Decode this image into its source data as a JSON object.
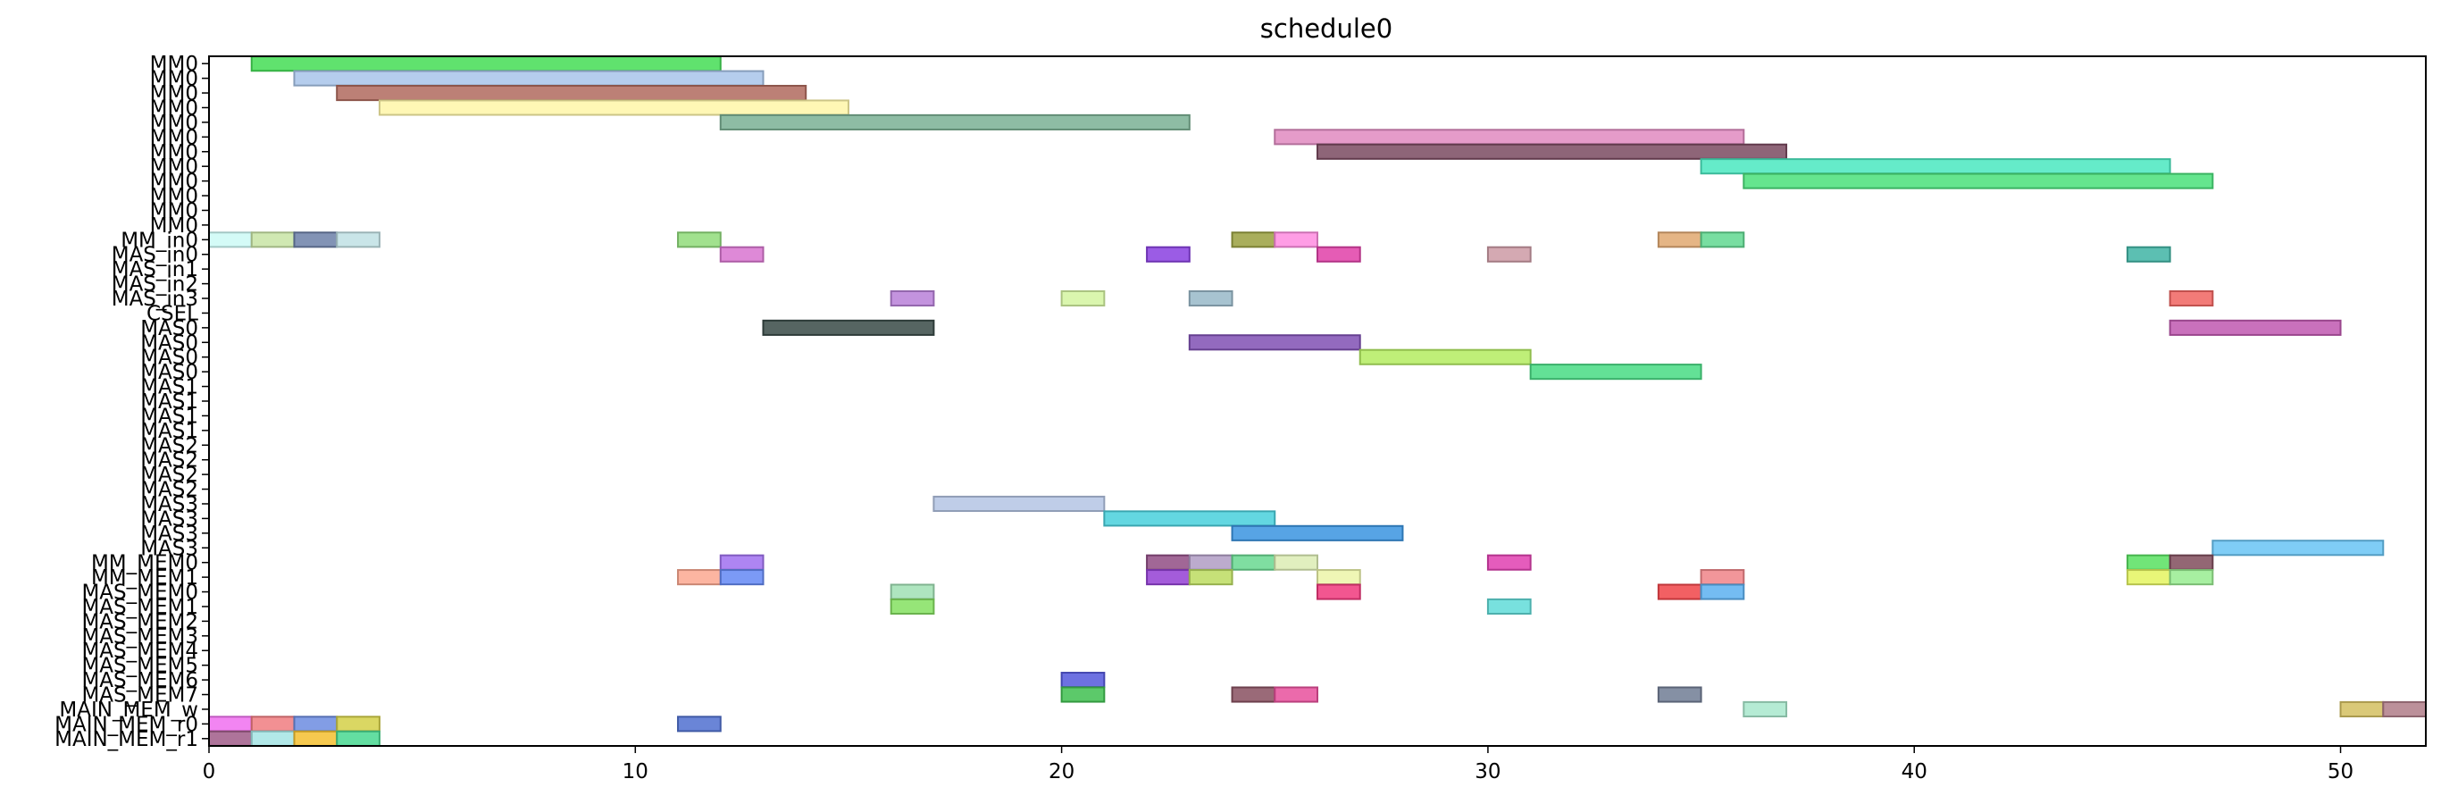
{
  "chart_data": {
    "type": "gantt",
    "title": "schedule0",
    "xlim": [
      0,
      52
    ],
    "xticks": [
      0,
      10,
      20,
      30,
      40,
      50
    ],
    "grid": false,
    "rows": [
      "MM0",
      "MM0",
      "MM0",
      "MM0",
      "MM0",
      "MM0",
      "MM0",
      "MM0",
      "MM0",
      "MM0",
      "MM0",
      "MM0",
      "MM_in0",
      "MAS_in0",
      "MAS_in1",
      "MAS_in2",
      "MAS_in3",
      "CSEL",
      "MAS0",
      "MAS0",
      "MAS0",
      "MAS0",
      "MAS1",
      "MAS1",
      "MAS1",
      "MAS1",
      "MAS2",
      "MAS2",
      "MAS2",
      "MAS2",
      "MAS3",
      "MAS3",
      "MAS3",
      "MAS3",
      "MM_MEM0",
      "MM_MEM1",
      "MAS_MEM0",
      "MAS_MEM1",
      "MAS_MEM2",
      "MAS_MEM3",
      "MAS_MEM4",
      "MAS_MEM5",
      "MAS_MEM6",
      "MAS_MEM7",
      "MAIN_MEM_w",
      "MAIN_MEM_r0",
      "MAIN_MEM_r1"
    ],
    "tasks": [
      {
        "row": 0,
        "start": 1,
        "end": 12,
        "color": "#44dd55"
      },
      {
        "row": 1,
        "start": 2,
        "end": 13,
        "color": "#a8c4ea"
      },
      {
        "row": 2,
        "start": 3,
        "end": 14,
        "color": "#b06a5e"
      },
      {
        "row": 3,
        "start": 4,
        "end": 15,
        "color": "#fff6a8"
      },
      {
        "row": 4,
        "start": 12,
        "end": 23,
        "color": "#7ab094"
      },
      {
        "row": 5,
        "start": 25,
        "end": 36,
        "color": "#e08ac0"
      },
      {
        "row": 6,
        "start": 26,
        "end": 37,
        "color": "#7a4a60"
      },
      {
        "row": 7,
        "start": 35,
        "end": 46,
        "color": "#4ae8c0"
      },
      {
        "row": 8,
        "start": 36,
        "end": 47,
        "color": "#4ae07a"
      },
      {
        "row": 12,
        "start": 0,
        "end": 1,
        "color": "#ccfaf6"
      },
      {
        "row": 12,
        "start": 1,
        "end": 2,
        "color": "#c8e4a4"
      },
      {
        "row": 12,
        "start": 2,
        "end": 3,
        "color": "#6c80a8"
      },
      {
        "row": 12,
        "start": 3,
        "end": 4,
        "color": "#c0e0e4"
      },
      {
        "row": 12,
        "start": 11,
        "end": 12,
        "color": "#90dc7a"
      },
      {
        "row": 12,
        "start": 24,
        "end": 25,
        "color": "#9aa040"
      },
      {
        "row": 12,
        "start": 25,
        "end": 26,
        "color": "#ff8ce0"
      },
      {
        "row": 12,
        "start": 34,
        "end": 35,
        "color": "#e0a870"
      },
      {
        "row": 12,
        "start": 35,
        "end": 36,
        "color": "#60d890"
      },
      {
        "row": 13,
        "start": 12,
        "end": 13,
        "color": "#d874d0"
      },
      {
        "row": 13,
        "start": 22,
        "end": 23,
        "color": "#8a40e0"
      },
      {
        "row": 13,
        "start": 26,
        "end": 27,
        "color": "#e040a8"
      },
      {
        "row": 13,
        "start": 30,
        "end": 31,
        "color": "#cc9aa4"
      },
      {
        "row": 13,
        "start": 45,
        "end": 46,
        "color": "#40b4a4"
      },
      {
        "row": 16,
        "start": 16,
        "end": 17,
        "color": "#b880d8"
      },
      {
        "row": 16,
        "start": 20,
        "end": 21,
        "color": "#d4f4a0"
      },
      {
        "row": 16,
        "start": 23,
        "end": 24,
        "color": "#98b8c8"
      },
      {
        "row": 16,
        "start": 46,
        "end": 47,
        "color": "#f06460"
      },
      {
        "row": 18,
        "start": 13,
        "end": 17,
        "color": "#384a46"
      },
      {
        "row": 18,
        "start": 46,
        "end": 50,
        "color": "#c058b0"
      },
      {
        "row": 19,
        "start": 23,
        "end": 27,
        "color": "#8050b4"
      },
      {
        "row": 20,
        "start": 27,
        "end": 31,
        "color": "#b4ec60"
      },
      {
        "row": 21,
        "start": 31,
        "end": 35,
        "color": "#48dc84"
      },
      {
        "row": 30,
        "start": 17,
        "end": 21,
        "color": "#b4c4e4"
      },
      {
        "row": 31,
        "start": 21,
        "end": 25,
        "color": "#48d0dc"
      },
      {
        "row": 32,
        "start": 24,
        "end": 28,
        "color": "#3a94e0"
      },
      {
        "row": 33,
        "start": 47,
        "end": 51,
        "color": "#68c4f4"
      },
      {
        "row": 34,
        "start": 12,
        "end": 13,
        "color": "#a070f0"
      },
      {
        "row": 34,
        "start": 22,
        "end": 23,
        "color": "#904c84"
      },
      {
        "row": 34,
        "start": 23,
        "end": 24,
        "color": "#b09cc4"
      },
      {
        "row": 34,
        "start": 24,
        "end": 25,
        "color": "#68d890"
      },
      {
        "row": 34,
        "start": 25,
        "end": 26,
        "color": "#dcecb4"
      },
      {
        "row": 34,
        "start": 30,
        "end": 31,
        "color": "#e040b0"
      },
      {
        "row": 34,
        "start": 45,
        "end": 46,
        "color": "#58e060"
      },
      {
        "row": 34,
        "start": 46,
        "end": 47,
        "color": "#804c5c"
      },
      {
        "row": 35,
        "start": 11,
        "end": 12,
        "color": "#fca890"
      },
      {
        "row": 35,
        "start": 12,
        "end": 13,
        "color": "#6488f4"
      },
      {
        "row": 35,
        "start": 22,
        "end": 23,
        "color": "#9440d4"
      },
      {
        "row": 35,
        "start": 23,
        "end": 24,
        "color": "#bcdc60"
      },
      {
        "row": 35,
        "start": 26,
        "end": 27,
        "color": "#ecf4a8"
      },
      {
        "row": 35,
        "start": 35,
        "end": 36,
        "color": "#f08488"
      },
      {
        "row": 35,
        "start": 45,
        "end": 46,
        "color": "#e4f460"
      },
      {
        "row": 35,
        "start": 46,
        "end": 47,
        "color": "#98ec90"
      },
      {
        "row": 36,
        "start": 16,
        "end": 17,
        "color": "#a0e0b4"
      },
      {
        "row": 36,
        "start": 26,
        "end": 27,
        "color": "#f0387c"
      },
      {
        "row": 36,
        "start": 34,
        "end": 35,
        "color": "#f04448"
      },
      {
        "row": 36,
        "start": 35,
        "end": 36,
        "color": "#5cb0f0"
      },
      {
        "row": 37,
        "start": 16,
        "end": 17,
        "color": "#84e060"
      },
      {
        "row": 37,
        "start": 30,
        "end": 31,
        "color": "#60dcd8"
      },
      {
        "row": 42,
        "start": 20,
        "end": 21,
        "color": "#5458dc"
      },
      {
        "row": 43,
        "start": 20,
        "end": 21,
        "color": "#40c050"
      },
      {
        "row": 43,
        "start": 24,
        "end": 25,
        "color": "#885060"
      },
      {
        "row": 43,
        "start": 25,
        "end": 26,
        "color": "#e8509c"
      },
      {
        "row": 43,
        "start": 34,
        "end": 35,
        "color": "#707c94"
      },
      {
        "row": 44,
        "start": 36,
        "end": 37,
        "color": "#a8e8cc"
      },
      {
        "row": 44,
        "start": 50,
        "end": 51,
        "color": "#d4c060"
      },
      {
        "row": 44,
        "start": 51,
        "end": 52,
        "color": "#b07c88"
      },
      {
        "row": 45,
        "start": 0,
        "end": 1,
        "color": "#f070f0"
      },
      {
        "row": 45,
        "start": 1,
        "end": 2,
        "color": "#f07c80"
      },
      {
        "row": 45,
        "start": 2,
        "end": 3,
        "color": "#6c8ce0"
      },
      {
        "row": 45,
        "start": 3,
        "end": 4,
        "color": "#d4d048"
      },
      {
        "row": 45,
        "start": 11,
        "end": 12,
        "color": "#5070d0"
      },
      {
        "row": 46,
        "start": 0,
        "end": 1,
        "color": "#a05c88"
      },
      {
        "row": 46,
        "start": 1,
        "end": 2,
        "color": "#a4e4e4"
      },
      {
        "row": 46,
        "start": 2,
        "end": 3,
        "color": "#f4c030"
      },
      {
        "row": 46,
        "start": 3,
        "end": 4,
        "color": "#48d890"
      }
    ]
  }
}
